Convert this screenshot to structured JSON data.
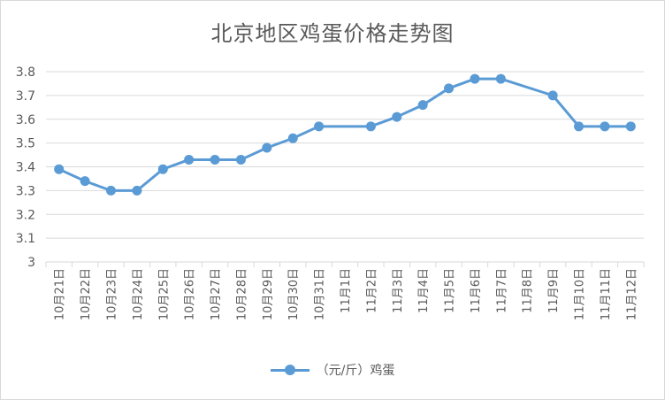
{
  "chart_data": {
    "type": "line",
    "title": "北京地区鸡蛋价格走势图",
    "xlabel": "",
    "ylabel": "",
    "categories": [
      "10月21日",
      "10月22日",
      "10月23日",
      "10月24日",
      "10月25日",
      "10月26日",
      "10月27日",
      "10月28日",
      "10月29日",
      "10月30日",
      "10月31日",
      "11月1日",
      "11月2日",
      "11月3日",
      "11月4日",
      "11月5日",
      "11月6日",
      "11月7日",
      "11月8日",
      "11月9日",
      "11月10日",
      "11月11日",
      "11月12日"
    ],
    "series": [
      {
        "name": "（元/斤）鸡蛋",
        "values": [
          3.39,
          3.34,
          3.3,
          3.3,
          3.39,
          3.43,
          3.43,
          3.43,
          3.48,
          3.52,
          3.57,
          null,
          3.57,
          3.61,
          3.66,
          3.73,
          3.77,
          3.77,
          null,
          3.7,
          3.57,
          3.57,
          3.57
        ]
      }
    ],
    "ylim": [
      3,
      3.8
    ],
    "yticks": [
      "3",
      "3.1",
      "3.2",
      "3.3",
      "3.4",
      "3.5",
      "3.6",
      "3.7",
      "3.8"
    ],
    "grid": true,
    "legend_position": "bottom",
    "line_color": "#5b9bd5"
  }
}
